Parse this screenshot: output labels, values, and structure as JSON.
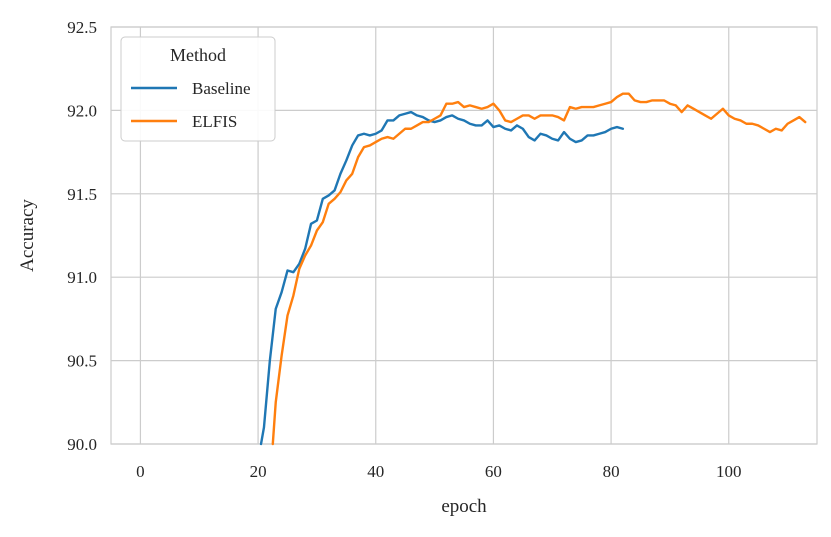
{
  "chart_data": {
    "type": "line",
    "title": "",
    "xlabel": "epoch",
    "ylabel": "Accuracy",
    "xlim": [
      -5,
      115
    ],
    "ylim": [
      90.0,
      92.5
    ],
    "xticks": [
      0,
      20,
      40,
      60,
      80,
      100
    ],
    "yticks": [
      90.0,
      90.5,
      91.0,
      91.5,
      92.0,
      92.5
    ],
    "xtick_labels": [
      "0",
      "20",
      "40",
      "60",
      "80",
      "100"
    ],
    "ytick_labels": [
      "90.0",
      "90.5",
      "91.0",
      "91.5",
      "92.0",
      "92.5"
    ],
    "grid": true,
    "legend": {
      "title": "Method",
      "placement": "top-left"
    },
    "series": [
      {
        "name": "Baseline",
        "color": "#1f77b4",
        "x": [
          20.5,
          21,
          22,
          23,
          24,
          25,
          26,
          27,
          28,
          29,
          30,
          31,
          32,
          33,
          34,
          35,
          36,
          37,
          38,
          39,
          40,
          41,
          42,
          43,
          44,
          45,
          46,
          47,
          48,
          49,
          50,
          51,
          52,
          53,
          54,
          55,
          56,
          57,
          58,
          59,
          60,
          61,
          62,
          63,
          64,
          65,
          66,
          67,
          68,
          69,
          70,
          71,
          72,
          73,
          74,
          75,
          76,
          77,
          78,
          79,
          80,
          81,
          82
        ],
        "y": [
          90.0,
          90.1,
          90.5,
          90.81,
          90.91,
          91.04,
          91.03,
          91.08,
          91.17,
          91.32,
          91.34,
          91.47,
          91.49,
          91.52,
          91.62,
          91.7,
          91.79,
          91.85,
          91.86,
          91.85,
          91.86,
          91.88,
          91.94,
          91.94,
          91.97,
          91.98,
          91.99,
          91.97,
          91.96,
          91.94,
          91.93,
          91.94,
          91.96,
          91.97,
          91.95,
          91.94,
          91.92,
          91.91,
          91.91,
          91.94,
          91.9,
          91.91,
          91.89,
          91.88,
          91.91,
          91.89,
          91.84,
          91.82,
          91.86,
          91.85,
          91.83,
          91.82,
          91.87,
          91.83,
          91.81,
          91.82,
          91.85,
          91.85,
          91.86,
          91.87,
          91.89,
          91.9,
          91.89
        ]
      },
      {
        "name": "ELFIS",
        "color": "#ff7f0e",
        "x": [
          22.5,
          23,
          24,
          25,
          26,
          27,
          28,
          29,
          30,
          31,
          32,
          33,
          34,
          35,
          36,
          37,
          38,
          39,
          40,
          41,
          42,
          43,
          44,
          45,
          46,
          47,
          48,
          49,
          50,
          51,
          52,
          53,
          54,
          55,
          56,
          57,
          58,
          59,
          60,
          61,
          62,
          63,
          64,
          65,
          66,
          67,
          68,
          69,
          70,
          71,
          72,
          73,
          74,
          75,
          76,
          77,
          78,
          79,
          80,
          81,
          82,
          83,
          84,
          85,
          86,
          87,
          88,
          89,
          90,
          91,
          92,
          93,
          94,
          95,
          96,
          97,
          98,
          99,
          100,
          101,
          102,
          103,
          104,
          105,
          106,
          107,
          108,
          109,
          110,
          111,
          112,
          113
        ],
        "y": [
          90.0,
          90.25,
          90.53,
          90.77,
          90.89,
          91.05,
          91.13,
          91.19,
          91.28,
          91.33,
          91.44,
          91.47,
          91.51,
          91.58,
          91.62,
          91.72,
          91.78,
          91.79,
          91.81,
          91.83,
          91.84,
          91.83,
          91.86,
          91.89,
          91.89,
          91.91,
          91.93,
          91.93,
          91.95,
          91.97,
          92.04,
          92.04,
          92.05,
          92.02,
          92.03,
          92.02,
          92.01,
          92.02,
          92.04,
          92.0,
          91.94,
          91.93,
          91.95,
          91.97,
          91.97,
          91.95,
          91.97,
          91.97,
          91.97,
          91.96,
          91.94,
          92.02,
          92.01,
          92.02,
          92.02,
          92.02,
          92.03,
          92.04,
          92.05,
          92.08,
          92.1,
          92.1,
          92.06,
          92.05,
          92.05,
          92.06,
          92.06,
          92.06,
          92.04,
          92.03,
          91.99,
          92.03,
          92.01,
          91.99,
          91.97,
          91.95,
          91.98,
          92.01,
          91.97,
          91.95,
          91.94,
          91.92,
          91.92,
          91.91,
          91.89,
          91.87,
          91.89,
          91.88,
          91.92,
          91.94,
          91.96,
          91.93
        ]
      }
    ]
  }
}
